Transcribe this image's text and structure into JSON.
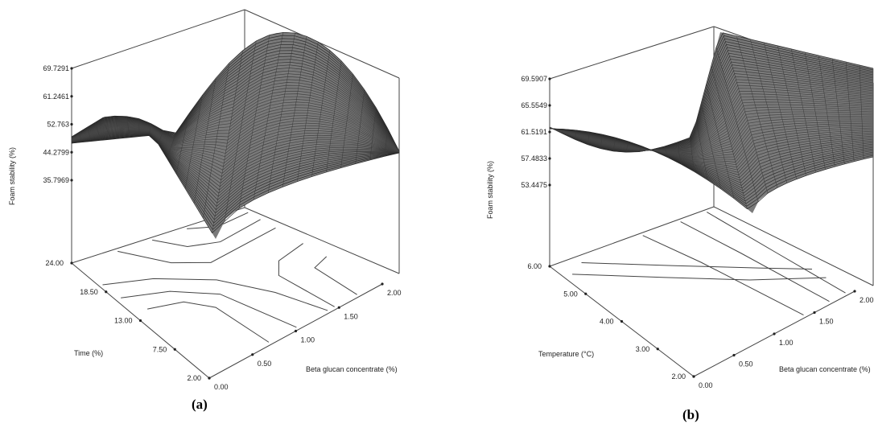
{
  "chart_data": [
    {
      "type": "surface3d",
      "panel_label": "(a)",
      "zlabel": "Foam stability (%)",
      "xlabel": "Beta glucan concentrate (%)",
      "ylabel": "Time (%)",
      "z_ticks": [
        "35.7969",
        "44.2799",
        "52.763",
        "61.2461",
        "69.7291"
      ],
      "x_ticks": [
        "0.00",
        "0.50",
        "1.00",
        "1.50",
        "2.00"
      ],
      "y_ticks": [
        "2.00",
        "7.50",
        "13.00",
        "18.50",
        "24.00"
      ],
      "zlim": [
        35.7969,
        69.7291
      ],
      "xlim": [
        0,
        2
      ],
      "ylim": [
        2,
        24
      ],
      "surface_shape": "saddle",
      "surface_color": "#555555",
      "grid": false
    },
    {
      "type": "surface3d",
      "panel_label": "(b)",
      "zlabel": "Foam stability (%)",
      "xlabel": "Beta glucan concentrate (%)",
      "ylabel": "Temperature (°C)",
      "z_ticks": [
        "53.4475",
        "57.4833",
        "61.5191",
        "65.5549",
        "69.5907"
      ],
      "x_ticks": [
        "0.00",
        "0.50",
        "1.00",
        "1.50",
        "2.00"
      ],
      "y_ticks": [
        "2.00",
        "3.00",
        "4.00",
        "5.00",
        "6.00"
      ],
      "zlim": [
        53.4475,
        69.5907
      ],
      "xlim": [
        0,
        2
      ],
      "ylim": [
        2,
        6
      ],
      "surface_shape": "trough",
      "surface_color": "#555555",
      "grid": false
    }
  ]
}
